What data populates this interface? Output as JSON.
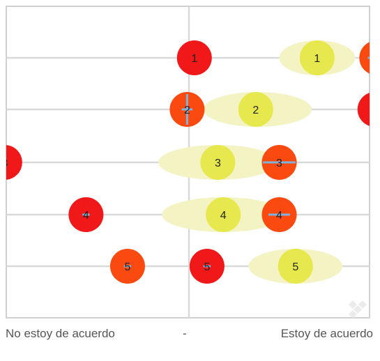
{
  "chart_data": {
    "type": "scatter",
    "title": "",
    "x_tick_labels": {
      "left": "No estoy de acuerdo",
      "middle": "-",
      "right": "Estoy de acuerdo"
    },
    "xlim": [
      -1,
      1
    ],
    "rows": [
      "1",
      "2",
      "3",
      "4",
      "5"
    ],
    "grid": true,
    "legend": "none",
    "colors": {
      "red": "#f01818",
      "orange": "#fa4a10",
      "yellow": "#e6e84e",
      "yellow_range": "#f3f3c4",
      "whisker": "#7fb3d9",
      "grid": "#d9d9d9",
      "frame": "#d0d0d0"
    },
    "series": [
      {
        "color_key": "red",
        "points": [
          {
            "label": "1",
            "row": 1,
            "x": 0.03,
            "whisker": 0
          },
          {
            "label": "2",
            "row": 2,
            "x": 1.03,
            "whisker": 0
          },
          {
            "label": "3",
            "row": 3,
            "x": -1.02,
            "whisker": 0
          },
          {
            "label": "4",
            "row": 4,
            "x": -0.57,
            "whisker": 0.02
          },
          {
            "label": "5",
            "row": 5,
            "x": 0.1,
            "whisker": 0.02
          }
        ]
      },
      {
        "color_key": "orange",
        "points": [
          {
            "label": "1",
            "row": 1,
            "x": 1.04,
            "whisker": 0.05
          },
          {
            "label": "2",
            "row": 2,
            "x": -0.01,
            "whisker": 0.03
          },
          {
            "label": "3",
            "row": 3,
            "x": 0.5,
            "whisker": 0.09
          },
          {
            "label": "4",
            "row": 4,
            "x": 0.5,
            "whisker": 0.06
          },
          {
            "label": "5",
            "row": 5,
            "x": -0.34,
            "whisker": 0.02
          }
        ]
      },
      {
        "color_key": "yellow",
        "points": [
          {
            "label": "1",
            "row": 1,
            "x": 0.71,
            "range": [
              0.5,
              0.92
            ]
          },
          {
            "label": "2",
            "row": 2,
            "x": 0.37,
            "range": [
              0.08,
              0.68
            ]
          },
          {
            "label": "3",
            "row": 3,
            "x": 0.16,
            "range": [
              -0.17,
              0.49
            ]
          },
          {
            "label": "4",
            "row": 4,
            "x": 0.19,
            "range": [
              -0.15,
              0.53
            ]
          },
          {
            "label": "5",
            "row": 5,
            "x": 0.59,
            "range": [
              0.33,
              0.85
            ]
          }
        ]
      }
    ]
  }
}
